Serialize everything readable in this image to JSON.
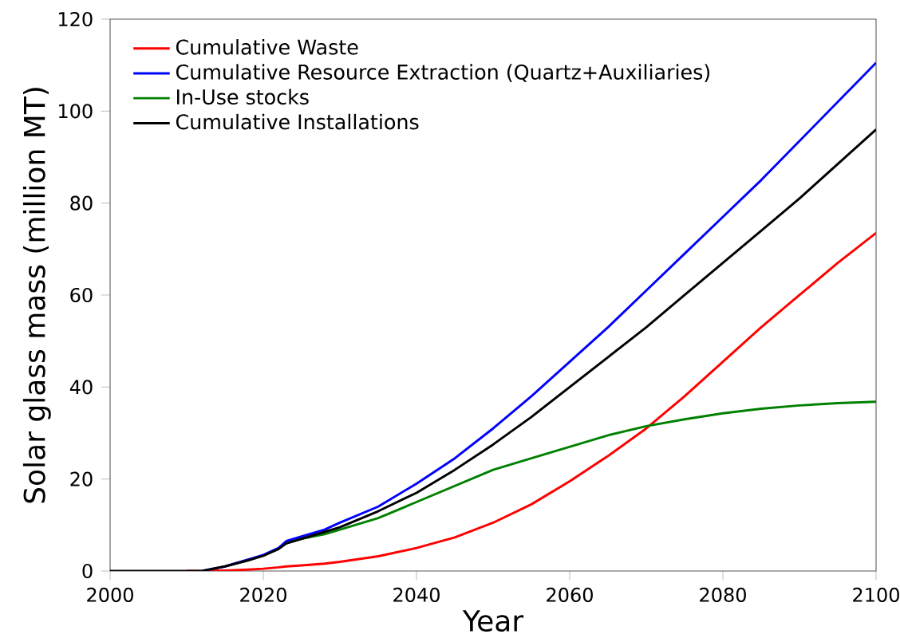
{
  "chart_data": {
    "type": "line",
    "xlabel": "Year",
    "ylabel": "Solar glass mass (million MT)",
    "x": [
      2000,
      2005,
      2010,
      2012,
      2015,
      2018,
      2020,
      2022,
      2023,
      2025,
      2028,
      2030,
      2035,
      2040,
      2045,
      2050,
      2055,
      2060,
      2065,
      2070,
      2075,
      2080,
      2085,
      2090,
      2095,
      2100
    ],
    "series": [
      {
        "name": "Cumulative Waste",
        "color": "#ff0000",
        "values": [
          null,
          null,
          0,
          0,
          0.1,
          0.3,
          0.5,
          0.8,
          1.0,
          1.2,
          1.6,
          2,
          3.2,
          5,
          7.3,
          10.5,
          14.5,
          19.5,
          25,
          31,
          38,
          45.5,
          53,
          60,
          67,
          73.5
        ]
      },
      {
        "name": "Cumulative Resource Extraction (Quartz+Auxiliaries)",
        "color": "#0000ff",
        "values": [
          null,
          null,
          null,
          0,
          1,
          2.5,
          3.5,
          5,
          6.5,
          7.5,
          9,
          10.5,
          14,
          19,
          24.5,
          31,
          38,
          45.5,
          53,
          61,
          69,
          77,
          85,
          93.5,
          102,
          110.5
        ]
      },
      {
        "name": "In-Use stocks",
        "color": "#008000",
        "values": [
          null,
          null,
          null,
          null,
          null,
          null,
          null,
          null,
          6,
          7,
          8,
          9,
          11.5,
          15,
          18.5,
          22,
          24.5,
          27,
          29.5,
          31.5,
          33,
          34.3,
          35.3,
          36,
          36.5,
          36.8
        ]
      },
      {
        "name": "Cumulative Installations",
        "color": "#000000",
        "values": [
          0,
          0,
          0,
          0,
          1,
          2.3,
          3.3,
          4.8,
          6,
          7,
          8.5,
          9.5,
          13,
          17,
          22,
          27.5,
          33.5,
          40,
          46.5,
          53,
          60,
          67,
          74,
          81,
          88.5,
          96
        ]
      }
    ],
    "xlim": [
      2000,
      2100
    ],
    "xticks": [
      2000,
      2020,
      2040,
      2060,
      2080,
      2100
    ],
    "ylim": [
      0,
      120
    ],
    "yticks": [
      0,
      20,
      40,
      60,
      80,
      100,
      120
    ],
    "legend": "top left",
    "grid": false,
    "marker": "none",
    "line_style": "solid"
  }
}
